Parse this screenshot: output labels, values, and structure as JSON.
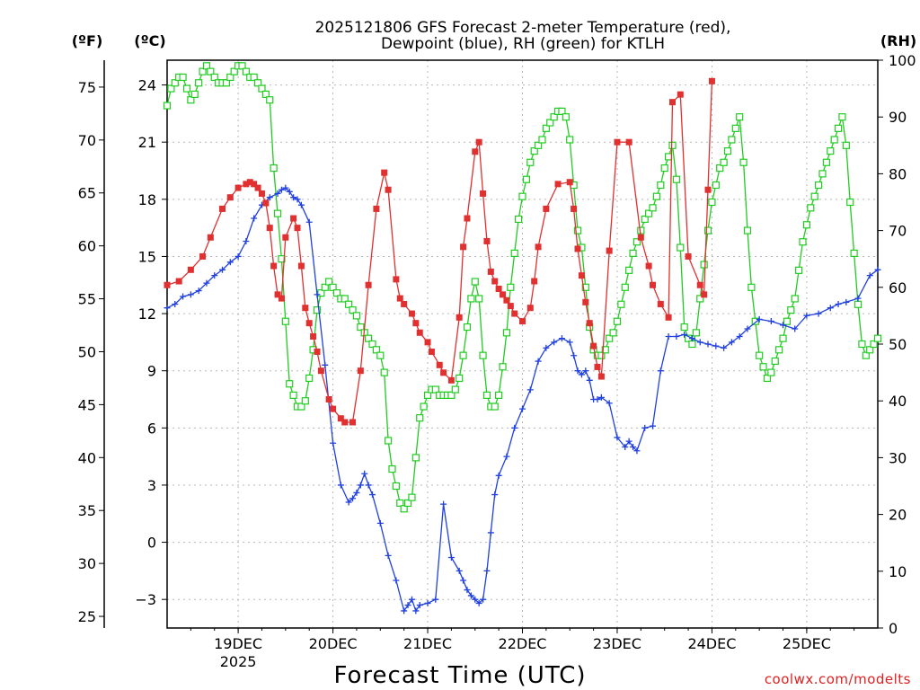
{
  "chart_data": {
    "type": "line",
    "title_line1": "2025121806 GFS Forecast 2-meter Temperature (red),",
    "title_line2": "Dewpoint (blue), RH (green) for KTLH",
    "xlabel": "Forecast Time (UTC)",
    "credit": "coolwx.com/modelts",
    "unit_left_f": "(ºF)",
    "unit_left_c": "(ºC)",
    "unit_right": "(RH)",
    "x_unit": "hours since 2025-12-18 06Z",
    "xlim": [
      0,
      180
    ],
    "x_ticks": [
      {
        "label": "19DEC",
        "sub": "2025",
        "x": 18
      },
      {
        "label": "20DEC",
        "sub": "",
        "x": 42
      },
      {
        "label": "21DEC",
        "sub": "",
        "x": 66
      },
      {
        "label": "22DEC",
        "sub": "",
        "x": 90
      },
      {
        "label": "23DEC",
        "sub": "",
        "x": 114
      },
      {
        "label": "24DEC",
        "sub": "",
        "x": 138
      },
      {
        "label": "25DEC",
        "sub": "",
        "x": 162
      }
    ],
    "ylim_c": [
      -4.5,
      25.3
    ],
    "y_ticks_c": [
      "24",
      "21",
      "18",
      "15",
      "12",
      "9",
      "6",
      "3",
      "0",
      "−3"
    ],
    "y_ticks_f": [
      "75",
      "70",
      "65",
      "60",
      "55",
      "50",
      "45",
      "40",
      "35",
      "30",
      "25"
    ],
    "ylim_rh": [
      0,
      100
    ],
    "y_ticks_rh": [
      "100",
      "90",
      "80",
      "70",
      "60",
      "50",
      "40",
      "30",
      "20",
      "10",
      "0"
    ],
    "colors": {
      "temperature": "#e03030",
      "dewpoint": "#2040e0",
      "rh": "#20cc20"
    },
    "series": [
      {
        "name": "Temperature (°C)",
        "x": [
          0,
          3,
          6,
          9,
          11,
          14,
          16,
          18,
          20,
          21,
          22,
          23,
          24,
          25,
          26,
          27,
          28,
          29,
          30,
          32,
          33,
          34,
          35,
          36,
          37,
          38,
          39,
          41,
          42,
          44,
          45,
          47,
          49,
          51,
          53,
          55,
          56,
          58,
          59,
          60,
          62,
          63,
          64,
          66,
          67,
          69,
          70,
          72,
          74,
          75,
          76,
          78,
          79,
          80,
          81,
          82,
          83,
          84,
          85,
          86,
          87,
          88,
          90,
          92,
          93,
          94,
          96,
          99,
          102,
          103,
          104,
          105,
          106,
          107,
          108,
          109,
          110,
          112,
          114,
          117,
          120,
          122,
          123,
          125,
          127,
          128,
          130,
          132,
          135,
          136,
          137,
          138
        ],
        "y": [
          13.5,
          13.7,
          14.3,
          15.0,
          16.0,
          17.5,
          18.1,
          18.6,
          18.8,
          18.9,
          18.8,
          18.6,
          18.3,
          17.8,
          16.5,
          14.5,
          13.0,
          12.8,
          16.0,
          17.0,
          16.5,
          14.5,
          12.3,
          11.5,
          10.8,
          10.0,
          9.0,
          7.5,
          7.0,
          6.5,
          6.3,
          6.3,
          9.0,
          13.5,
          17.5,
          19.4,
          18.5,
          13.8,
          12.8,
          12.5,
          12.0,
          11.5,
          11.0,
          10.5,
          10.0,
          9.3,
          8.9,
          8.5,
          11.8,
          15.5,
          17.0,
          20.5,
          21.0,
          18.3,
          15.8,
          14.2,
          13.7,
          13.3,
          13.0,
          12.7,
          12.4,
          12.0,
          11.6,
          12.3,
          13.7,
          15.5,
          17.5,
          18.8,
          18.9,
          17.5,
          15.4,
          14.0,
          12.6,
          11.5,
          10.3,
          9.2,
          8.7,
          15.3,
          21.0,
          21.0,
          16.0,
          14.5,
          13.5,
          12.5,
          11.8,
          23.1,
          23.5,
          15.0,
          13.5,
          13.0,
          18.5,
          24.2
        ]
      },
      {
        "name": "Dewpoint (°C)",
        "x": [
          0,
          2,
          4,
          6,
          8,
          10,
          12,
          14,
          16,
          18,
          20,
          22,
          24,
          26,
          28,
          29,
          30,
          31,
          32,
          33,
          34,
          36,
          38,
          40,
          42,
          44,
          46,
          47,
          48,
          49,
          50,
          51,
          52,
          54,
          56,
          58,
          60,
          61,
          62,
          63,
          64,
          66,
          68,
          70,
          72,
          74,
          75,
          76,
          77,
          78,
          79,
          80,
          81,
          82,
          83,
          84,
          86,
          88,
          90,
          92,
          94,
          96,
          98,
          100,
          102,
          103,
          104,
          105,
          106,
          107,
          108,
          109,
          110,
          112,
          114,
          116,
          117,
          118,
          119,
          121,
          123,
          125,
          127,
          129,
          131,
          133,
          135,
          137,
          139,
          141,
          143,
          145,
          147,
          150,
          153,
          156,
          159,
          162,
          165,
          168,
          170,
          172,
          175,
          178,
          180
        ],
        "y": [
          12.3,
          12.5,
          12.9,
          13.0,
          13.2,
          13.6,
          14.0,
          14.3,
          14.7,
          15.0,
          15.8,
          17.0,
          17.7,
          18.1,
          18.3,
          18.5,
          18.6,
          18.4,
          18.1,
          18.0,
          17.7,
          16.8,
          13.0,
          9.3,
          5.2,
          3.0,
          2.1,
          2.3,
          2.6,
          3.0,
          3.6,
          3.0,
          2.5,
          1.0,
          -0.7,
          -2.0,
          -3.6,
          -3.3,
          -3.0,
          -3.6,
          -3.3,
          -3.2,
          -3.0,
          2.0,
          -0.8,
          -1.5,
          -2.0,
          -2.5,
          -2.8,
          -3.0,
          -3.2,
          -3.0,
          -1.5,
          0.5,
          2.5,
          3.5,
          4.5,
          6.0,
          7.0,
          8.0,
          9.5,
          10.2,
          10.5,
          10.7,
          10.5,
          9.8,
          9.0,
          8.8,
          9.0,
          8.5,
          7.5,
          7.5,
          7.6,
          7.3,
          5.5,
          5.0,
          5.3,
          5.0,
          4.8,
          6.0,
          6.1,
          9.0,
          10.8,
          10.8,
          10.9,
          10.7,
          10.5,
          10.4,
          10.3,
          10.2,
          10.5,
          10.8,
          11.2,
          11.7,
          11.6,
          11.4,
          11.2,
          11.9,
          12.0,
          12.3,
          12.5,
          12.6,
          12.8,
          14.0,
          14.3
        ]
      },
      {
        "name": "RH (%)",
        "x": [
          0,
          1,
          2,
          3,
          4,
          5,
          6,
          7,
          8,
          9,
          10,
          11,
          12,
          13,
          14,
          15,
          16,
          17,
          18,
          19,
          20,
          21,
          22,
          23,
          24,
          25,
          26,
          27,
          28,
          29,
          30,
          31,
          32,
          33,
          34,
          35,
          36,
          37,
          38,
          39,
          40,
          41,
          42,
          43,
          44,
          45,
          46,
          47,
          48,
          49,
          50,
          51,
          52,
          53,
          54,
          55,
          56,
          57,
          58,
          59,
          60,
          61,
          62,
          63,
          64,
          65,
          66,
          67,
          68,
          69,
          70,
          71,
          72,
          73,
          74,
          75,
          76,
          77,
          78,
          79,
          80,
          81,
          82,
          83,
          84,
          85,
          86,
          87,
          88,
          89,
          90,
          91,
          92,
          93,
          94,
          95,
          96,
          97,
          98,
          99,
          100,
          101,
          102,
          103,
          104,
          105,
          106,
          107,
          108,
          109,
          110,
          111,
          112,
          113,
          114,
          115,
          116,
          117,
          118,
          119,
          120,
          121,
          122,
          123,
          124,
          125,
          126,
          127,
          128,
          129,
          130,
          131,
          132,
          133,
          134,
          135,
          136,
          137,
          138,
          139,
          140,
          141,
          142,
          143,
          144,
          145,
          146,
          147,
          148,
          149,
          150,
          151,
          152,
          153,
          154,
          155,
          156,
          157,
          158,
          159,
          160,
          161,
          162,
          163,
          164,
          165,
          166,
          167,
          168,
          169,
          170,
          171,
          172,
          173,
          174,
          175,
          176,
          177,
          178,
          179,
          180
        ],
        "y": [
          92,
          95,
          96,
          97,
          97,
          95,
          93,
          94,
          96,
          98,
          99,
          98,
          97,
          96,
          96,
          96,
          97,
          98,
          99,
          99,
          98,
          97,
          97,
          96,
          95,
          94,
          93,
          81,
          73,
          65,
          54,
          43,
          41,
          39,
          39,
          40,
          44,
          49,
          56,
          59,
          60,
          61,
          60,
          59,
          58,
          58,
          57,
          56,
          55,
          53,
          52,
          51,
          50,
          49,
          48,
          45,
          33,
          28,
          25,
          22,
          21,
          22,
          23,
          30,
          37,
          39,
          41,
          42,
          42,
          41,
          41,
          41,
          41,
          42,
          44,
          48,
          53,
          58,
          61,
          58,
          48,
          41,
          39,
          39,
          41,
          46,
          52,
          60,
          66,
          72,
          76,
          79,
          82,
          84,
          85,
          86,
          88,
          89,
          90,
          91,
          91,
          90,
          86,
          78,
          70,
          67,
          60,
          53,
          49,
          48,
          48,
          49,
          51,
          52,
          54,
          57,
          60,
          63,
          66,
          68,
          70,
          72,
          73,
          74,
          76,
          78,
          81,
          83,
          85,
          79,
          67,
          53,
          51,
          50,
          52,
          58,
          64,
          70,
          75,
          78,
          81,
          82,
          84,
          86,
          88,
          90,
          82,
          70,
          60,
          54,
          48,
          46,
          44,
          45,
          47,
          49,
          51,
          54,
          56,
          58,
          63,
          68,
          71,
          74,
          76,
          78,
          80,
          82,
          84,
          86,
          88,
          90,
          85,
          75,
          66,
          57,
          50,
          48,
          49,
          50,
          51
        ]
      }
    ]
  }
}
